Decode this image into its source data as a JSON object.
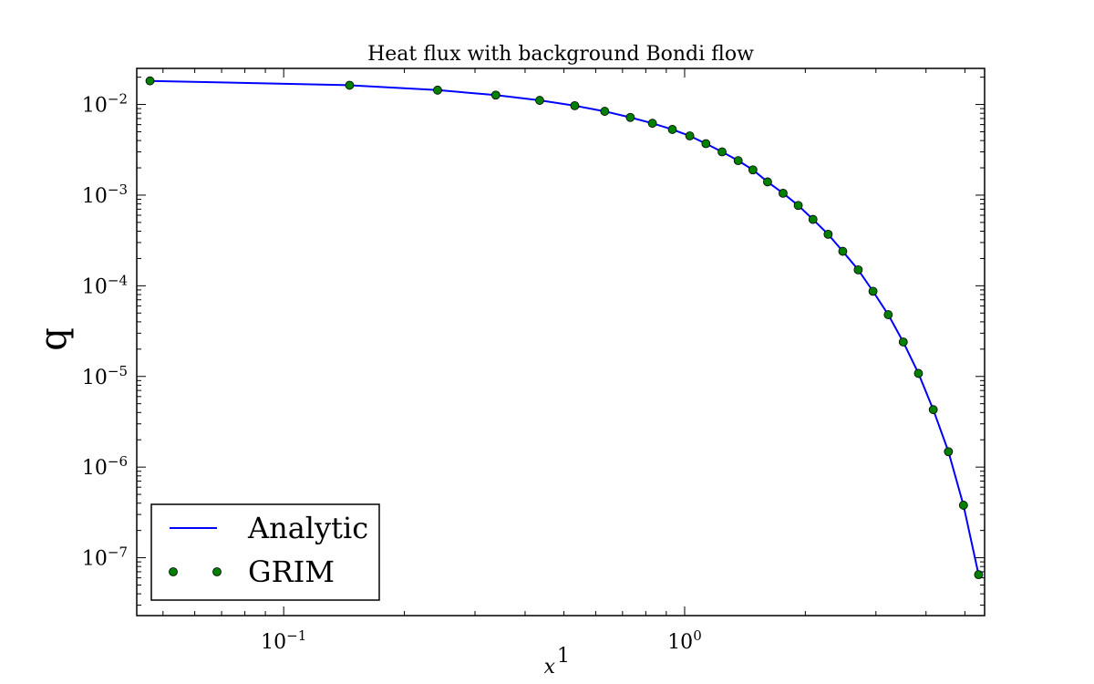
{
  "chart_data": {
    "type": "line",
    "title": "Heat flux with background Bondi flow",
    "xlabel": "x",
    "xlabel_superscript": "1",
    "ylabel": "q",
    "xscale": "log",
    "yscale": "log",
    "xlim": [
      0.043,
      5.6
    ],
    "ylim": [
      2.3e-08,
      0.025
    ],
    "xticks": [
      {
        "value": 0.1,
        "base": "10",
        "exp": "−1"
      },
      {
        "value": 1,
        "base": "10",
        "exp": "0"
      }
    ],
    "yticks": [
      {
        "value": 0.01,
        "base": "10",
        "exp": "−2"
      },
      {
        "value": 0.001,
        "base": "10",
        "exp": "−3"
      },
      {
        "value": 0.0001,
        "base": "10",
        "exp": "−4"
      },
      {
        "value": 1e-05,
        "base": "10",
        "exp": "−5"
      },
      {
        "value": 1e-06,
        "base": "10",
        "exp": "−6"
      },
      {
        "value": 1e-07,
        "base": "10",
        "exp": "−7"
      }
    ],
    "legend_position": "lower-left",
    "series": [
      {
        "name": "Analytic",
        "kind": "line",
        "color": "#0000ff",
        "x": [
          0.0464,
          0.146,
          0.242,
          0.338,
          0.435,
          0.532,
          0.632,
          0.732,
          0.831,
          0.932,
          1.03,
          1.13,
          1.24,
          1.36,
          1.48,
          1.61,
          1.76,
          1.92,
          2.09,
          2.28,
          2.48,
          2.71,
          2.95,
          3.22,
          3.51,
          3.83,
          4.17,
          4.55,
          4.96,
          5.41
        ],
        "y": [
          0.0182,
          0.0163,
          0.0144,
          0.0127,
          0.0111,
          0.0097,
          0.0084,
          0.0072,
          0.0062,
          0.0053,
          0.0045,
          0.0037,
          0.003,
          0.0024,
          0.0019,
          0.0014,
          0.00105,
          0.00077,
          0.00054,
          0.00037,
          0.00024,
          0.00015,
          8.7e-05,
          4.8e-05,
          2.4e-05,
          1.08e-05,
          4.3e-06,
          1.48e-06,
          3.8e-07,
          6.5e-08
        ]
      },
      {
        "name": "GRIM",
        "kind": "scatter",
        "color": "#008000",
        "x": [
          0.0464,
          0.146,
          0.242,
          0.338,
          0.435,
          0.532,
          0.632,
          0.732,
          0.831,
          0.932,
          1.03,
          1.13,
          1.24,
          1.36,
          1.48,
          1.61,
          1.76,
          1.92,
          2.09,
          2.28,
          2.48,
          2.71,
          2.95,
          3.22,
          3.51,
          3.83,
          4.17,
          4.55,
          4.96,
          5.41
        ],
        "y": [
          0.0182,
          0.0163,
          0.0144,
          0.0127,
          0.0111,
          0.0097,
          0.0084,
          0.0072,
          0.0062,
          0.0053,
          0.0045,
          0.0037,
          0.003,
          0.0024,
          0.0019,
          0.0014,
          0.00105,
          0.00077,
          0.00054,
          0.00037,
          0.00024,
          0.00015,
          8.7e-05,
          4.8e-05,
          2.4e-05,
          1.08e-05,
          4.3e-06,
          1.48e-06,
          3.8e-07,
          6.5e-08
        ]
      }
    ]
  }
}
